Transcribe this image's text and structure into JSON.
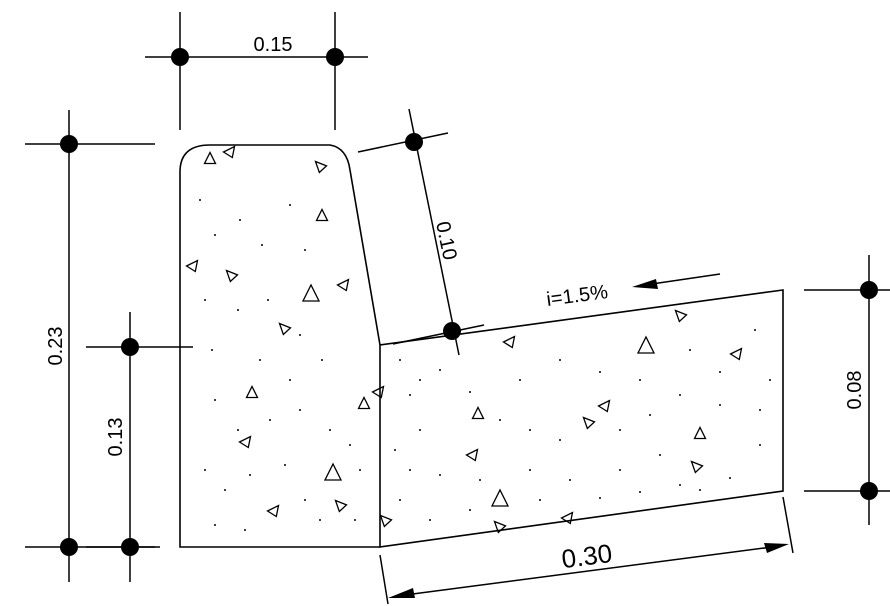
{
  "dimensions": {
    "top_width": "0.15",
    "total_height": "0.23",
    "curb_height": "0.13",
    "curb_face": "0.10",
    "gutter_width": "0.30",
    "gutter_height": "0.08"
  },
  "slope_label": "i=1.5%"
}
